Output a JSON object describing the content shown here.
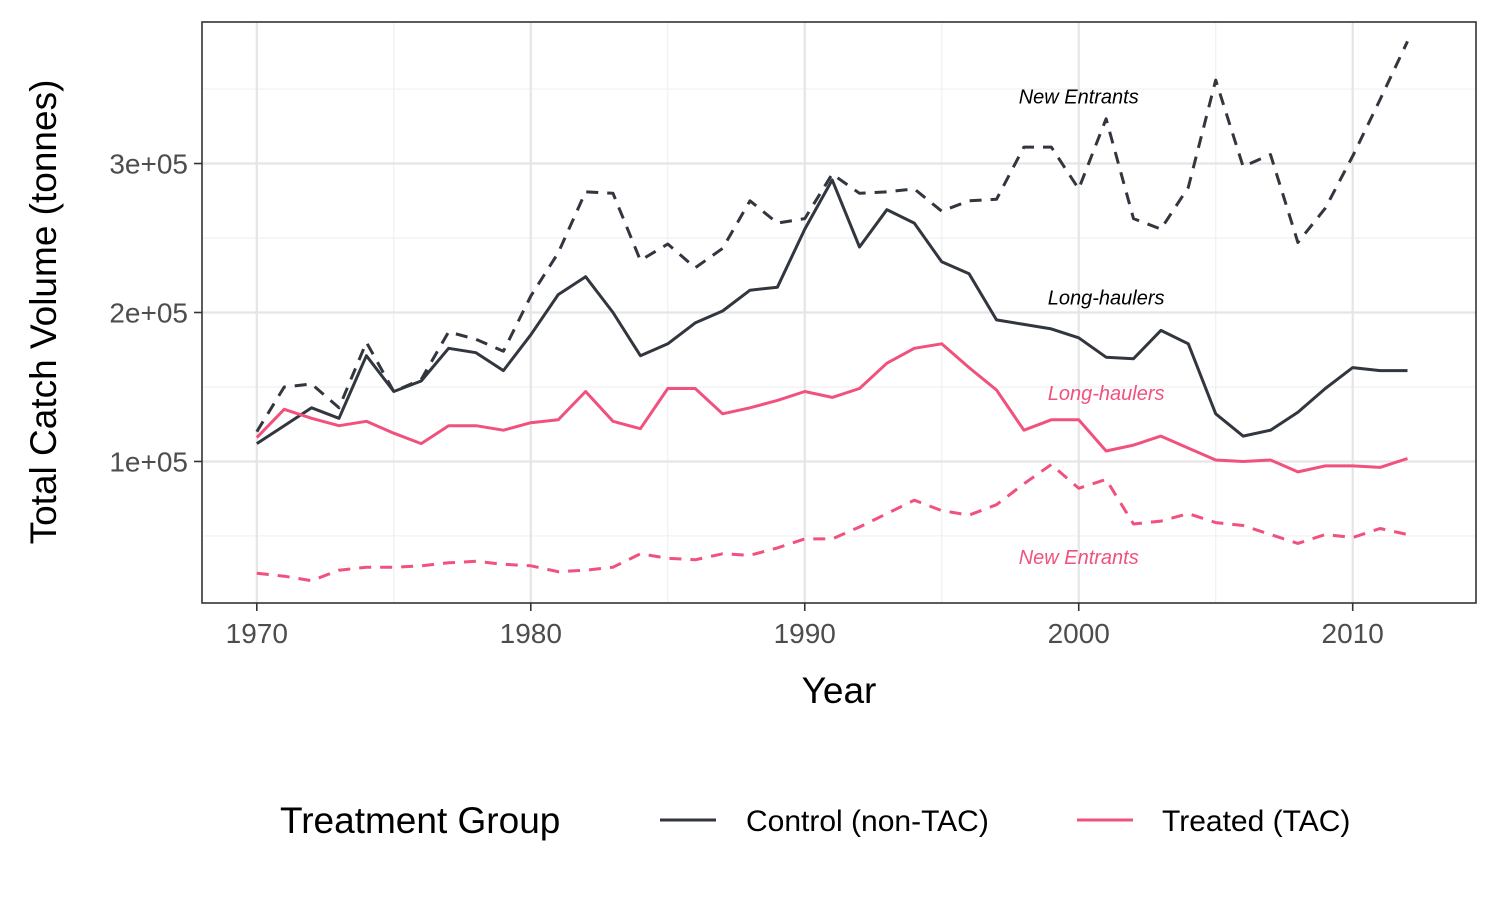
{
  "chart_data": {
    "type": "line",
    "xlabel": "Year",
    "ylabel": "Total Catch Volume (tonnes)",
    "xlim": [
      1968,
      2014.5
    ],
    "ylim": [
      5000,
      395000
    ],
    "x_ticks": [
      1970,
      1980,
      1990,
      2000,
      2010
    ],
    "x_tick_labels": [
      "1970",
      "1980",
      "1990",
      "2000",
      "2010"
    ],
    "y_ticks": [
      100000,
      200000,
      300000
    ],
    "y_tick_labels": [
      "1e+05",
      "2e+05",
      "3e+05"
    ],
    "grid": true,
    "legend": {
      "title": "Treatment Group",
      "position": "bottom"
    },
    "x": [
      1970,
      1971,
      1972,
      1973,
      1974,
      1975,
      1976,
      1977,
      1978,
      1979,
      1980,
      1981,
      1982,
      1983,
      1984,
      1985,
      1986,
      1987,
      1988,
      1989,
      1990,
      1991,
      1992,
      1993,
      1994,
      1995,
      1996,
      1997,
      1998,
      1999,
      2000,
      2001,
      2002,
      2003,
      2004,
      2005,
      2006,
      2007,
      2008,
      2009,
      2010,
      2011,
      2012
    ],
    "series": [
      {
        "name": "Control (non-TAC)",
        "group": "control",
        "color": "#31363f",
        "dash": "solid",
        "label": "Long-haulers",
        "values": [
          112000,
          124000,
          136000,
          129000,
          171000,
          147000,
          154000,
          176000,
          173000,
          161000,
          185000,
          212000,
          224000,
          200000,
          171000,
          179000,
          193000,
          201000,
          215000,
          217000,
          256000,
          289000,
          244000,
          269000,
          260000,
          234000,
          226000,
          195000,
          192000,
          189000,
          183000,
          170000,
          169000,
          188000,
          179000,
          132000,
          117000,
          121000,
          133000,
          149000,
          163000,
          161000,
          161000
        ]
      },
      {
        "name": "Control (non-TAC)",
        "group": "control",
        "color": "#31363f",
        "dash": "dashed",
        "label": "New Entrants",
        "values": [
          120000,
          150000,
          152000,
          136000,
          180000,
          147000,
          155000,
          187000,
          182000,
          174000,
          211000,
          240000,
          281000,
          280000,
          235000,
          246000,
          230000,
          243000,
          275000,
          260000,
          263000,
          293000,
          280000,
          281000,
          283000,
          268000,
          275000,
          276000,
          311000,
          311000,
          283000,
          330000,
          263000,
          256000,
          284000,
          356000,
          298000,
          306000,
          247000,
          270000,
          305000,
          343000,
          382000
        ]
      },
      {
        "name": "Treated (TAC)",
        "group": "treated",
        "color": "#f0517d",
        "dash": "solid",
        "label": "Long-haulers",
        "values": [
          116000,
          135000,
          129000,
          124000,
          127000,
          119000,
          112000,
          124000,
          124000,
          121000,
          126000,
          128000,
          147000,
          127000,
          122000,
          149000,
          149000,
          132000,
          136000,
          141000,
          147000,
          143000,
          149000,
          166000,
          176000,
          179000,
          163000,
          148000,
          121000,
          128000,
          128000,
          107000,
          111000,
          117000,
          109000,
          101000,
          100000,
          101000,
          93000,
          97000,
          97000,
          96000,
          102000
        ]
      },
      {
        "name": "Treated (TAC)",
        "group": "treated",
        "color": "#f0517d",
        "dash": "dashed",
        "label": "New Entrants",
        "values": [
          25000,
          23000,
          20000,
          27000,
          29000,
          29000,
          30000,
          32000,
          33000,
          31000,
          30000,
          26000,
          27000,
          29000,
          38000,
          35000,
          34000,
          38000,
          37000,
          42000,
          48000,
          48000,
          56000,
          65000,
          74000,
          67000,
          64000,
          71000,
          85000,
          98000,
          82000,
          88000,
          58000,
          60000,
          65000,
          59000,
          57000,
          51000,
          45000,
          51000,
          49000,
          55000,
          51000
        ]
      }
    ],
    "annotations": [
      {
        "text": "New Entrants",
        "group": "control",
        "color": "#000000",
        "x": 2000,
        "y": 345000
      },
      {
        "text": "Long-haulers",
        "group": "control",
        "color": "#000000",
        "x": 2001,
        "y": 210000
      },
      {
        "text": "Long-haulers",
        "group": "treated",
        "color": "#f0517d",
        "x": 2001,
        "y": 146000
      },
      {
        "text": "New Entrants",
        "group": "treated",
        "color": "#f0517d",
        "x": 2000,
        "y": 36000
      }
    ],
    "legend_entries": [
      {
        "label": "Control (non-TAC)",
        "color": "#31363f"
      },
      {
        "label": "Treated (TAC)",
        "color": "#f0517d"
      }
    ]
  }
}
